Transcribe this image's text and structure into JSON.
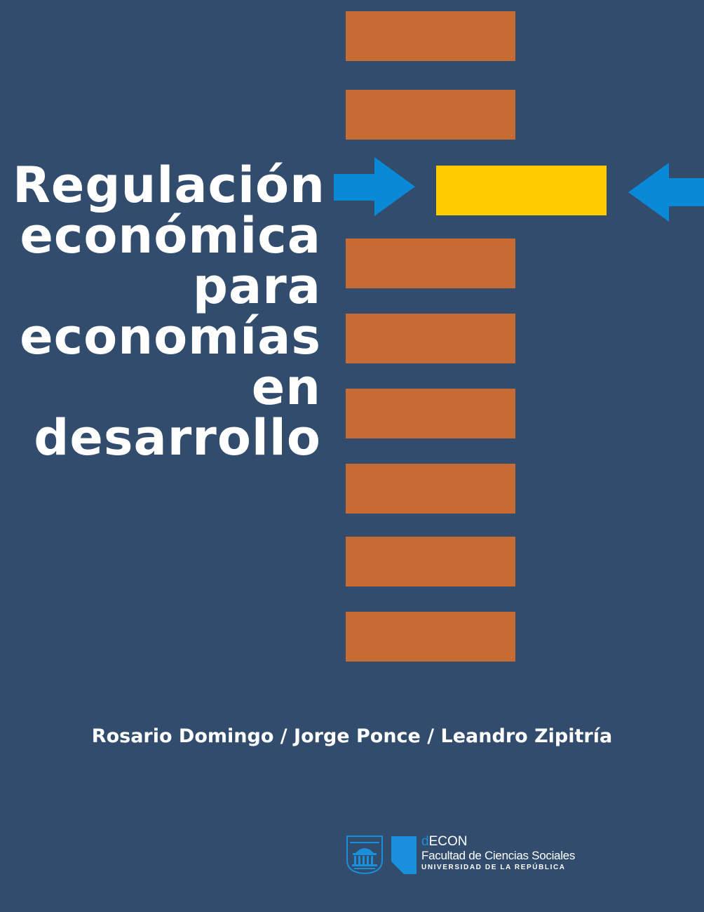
{
  "cover": {
    "title_lines": [
      "Regulación",
      "económica",
      "para",
      "economías",
      "en",
      "desarrollo"
    ],
    "authors": "Rosario Domingo / Jorge Ponce / Leandro Zipitría",
    "logo": {
      "decon_prefix": "d",
      "decon_suffix": "ECON",
      "faculty": "Facultad de Ciencias Sociales",
      "university": "UNIVERSIDAD DE LA REPÚBLICA"
    }
  },
  "colors": {
    "background": "#314c6c",
    "bar": "#c76b33",
    "highlight_bar": "#ffcc00",
    "arrow": "#0a8ad6",
    "text": "#ffffff"
  },
  "icons": [
    "right-arrow-icon",
    "left-arrow-icon",
    "udelar-building-icon",
    "decon-logo-icon"
  ]
}
